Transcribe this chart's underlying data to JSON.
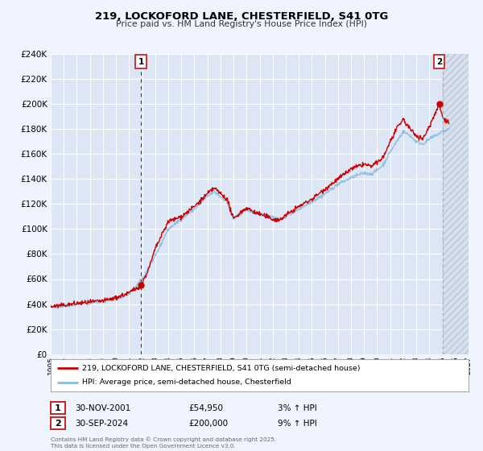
{
  "title": "219, LOCKOFORD LANE, CHESTERFIELD, S41 0TG",
  "subtitle": "Price paid vs. HM Land Registry's House Price Index (HPI)",
  "bg_color": "#f0f4ff",
  "plot_bg_color": "#dde6f5",
  "grid_color": "#ffffff",
  "red_line_label": "219, LOCKOFORD LANE, CHESTERFIELD, S41 0TG (semi-detached house)",
  "blue_line_label": "HPI: Average price, semi-detached house, Chesterfield",
  "marker1_date": "30-NOV-2001",
  "marker1_price": "£54,950",
  "marker1_hpi": "3% ↑ HPI",
  "marker1_value": 54950,
  "marker1_year": 2001.92,
  "marker2_date": "30-SEP-2024",
  "marker2_price": "£200,000",
  "marker2_hpi": "9% ↑ HPI",
  "marker2_value": 200000,
  "marker2_year": 2024.75,
  "ylim": [
    0,
    240000
  ],
  "xlim_start": 1995,
  "xlim_end": 2027,
  "footnote": "Contains HM Land Registry data © Crown copyright and database right 2025.\nThis data is licensed under the Open Government Licence v3.0.",
  "red_color": "#cc0000",
  "blue_color": "#88bbdd",
  "hpi_anchors": [
    [
      1995.0,
      37000
    ],
    [
      1996.0,
      38500
    ],
    [
      1997.0,
      40000
    ],
    [
      1998.0,
      41000
    ],
    [
      1999.0,
      42000
    ],
    [
      2000.0,
      44000
    ],
    [
      2001.0,
      48000
    ],
    [
      2002.0,
      60000
    ],
    [
      2003.0,
      78000
    ],
    [
      2004.0,
      100000
    ],
    [
      2005.0,
      108000
    ],
    [
      2006.0,
      116000
    ],
    [
      2007.0,
      126000
    ],
    [
      2007.5,
      130000
    ],
    [
      2008.5,
      122000
    ],
    [
      2009.0,
      108000
    ],
    [
      2009.5,
      112000
    ],
    [
      2010.0,
      116000
    ],
    [
      2010.5,
      113000
    ],
    [
      2011.0,
      112000
    ],
    [
      2012.0,
      110000
    ],
    [
      2012.5,
      108000
    ],
    [
      2013.0,
      110000
    ],
    [
      2014.0,
      116000
    ],
    [
      2015.0,
      122000
    ],
    [
      2016.0,
      128000
    ],
    [
      2017.0,
      136000
    ],
    [
      2018.0,
      141000
    ],
    [
      2019.0,
      145000
    ],
    [
      2019.5,
      144000
    ],
    [
      2020.0,
      147000
    ],
    [
      2020.5,
      152000
    ],
    [
      2021.0,
      162000
    ],
    [
      2021.5,
      170000
    ],
    [
      2022.0,
      178000
    ],
    [
      2022.5,
      175000
    ],
    [
      2023.0,
      170000
    ],
    [
      2023.5,
      168000
    ],
    [
      2024.0,
      172000
    ],
    [
      2024.5,
      175000
    ],
    [
      2025.0,
      178000
    ],
    [
      2025.5,
      180000
    ]
  ],
  "red_anchors": [
    [
      1995.0,
      38000
    ],
    [
      1996.0,
      39000
    ],
    [
      1997.0,
      40500
    ],
    [
      1998.0,
      41500
    ],
    [
      1999.0,
      42500
    ],
    [
      2000.0,
      45000
    ],
    [
      2001.0,
      49000
    ],
    [
      2001.92,
      54950
    ],
    [
      2002.5,
      68000
    ],
    [
      2003.0,
      84000
    ],
    [
      2004.0,
      106000
    ],
    [
      2005.0,
      110000
    ],
    [
      2006.0,
      118000
    ],
    [
      2007.0,
      128000
    ],
    [
      2007.5,
      133000
    ],
    [
      2008.5,
      124000
    ],
    [
      2009.0,
      108000
    ],
    [
      2009.5,
      113000
    ],
    [
      2010.0,
      117000
    ],
    [
      2010.5,
      114000
    ],
    [
      2011.0,
      112000
    ],
    [
      2012.0,
      108000
    ],
    [
      2012.5,
      107000
    ],
    [
      2013.0,
      111000
    ],
    [
      2014.0,
      118000
    ],
    [
      2015.0,
      124000
    ],
    [
      2016.0,
      132000
    ],
    [
      2017.0,
      140000
    ],
    [
      2018.0,
      148000
    ],
    [
      2019.0,
      152000
    ],
    [
      2019.5,
      150000
    ],
    [
      2020.0,
      153000
    ],
    [
      2020.5,
      158000
    ],
    [
      2021.0,
      170000
    ],
    [
      2021.5,
      180000
    ],
    [
      2022.0,
      188000
    ],
    [
      2022.3,
      183000
    ],
    [
      2022.7,
      178000
    ],
    [
      2023.0,
      175000
    ],
    [
      2023.5,
      172000
    ],
    [
      2024.0,
      182000
    ],
    [
      2024.75,
      200000
    ],
    [
      2025.0,
      190000
    ],
    [
      2025.5,
      185000
    ]
  ]
}
